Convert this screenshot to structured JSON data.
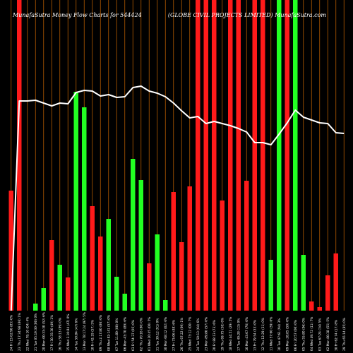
{
  "header": {
    "left_title": "MunafaSutra  Money Flow  Charts for 544424",
    "right_title": "(GLOBE CIVIL PROJECTS LIMITED) MunafaSutra.com"
  },
  "chart_data": {
    "type": "bar",
    "background": "#000000",
    "grid": "vertical orange lines per period",
    "colors": {
      "up": "#22ff22",
      "down": "#ff1a1a",
      "line": "#ffffff",
      "grid": "#b35a00"
    },
    "categories": [
      "24 Fri 15:02:96 (85) 0%",
      "23 Thu 17:34:98 (86) 1%",
      "22 Wed 78:10 (04) 4%",
      "21 Tue 05:19:30 (00) 0%",
      "20 Mon 00:33:30 (52) 6%",
      "17 Fri 30:35:30 (49) 1%",
      "16 Thu 58:13 (99) 0%",
      "15 Wed 2.10:84 (47) 0%",
      "14 Tue 59:84 (47) 6%",
      "13 Mon 78:17:24 (97) 5%",
      "10 Fri 42:19 (57) 5%",
      "09 Thu 2.17:80 (86) 0%",
      "08 Wed 82:141 (57) 0%",
      "07 Tue 11:80 (00) 0%",
      "06 Mon 43:70 (89) 6%",
      "03 Fri 54:37 (05) 0%",
      "02 Thu 70:16 (80) 0%",
      "01 Wed 20:45 (00) 5%",
      "31 Tue 39:12 (91) 0%",
      "30 Mon 68:12 (02) 6%",
      "27 Fri 73:06 (48) 6%",
      "26 Thu 67:22 (69) 1%",
      "25 Wed 73:12 (00) 7%",
      "24 Tue 50:13 (64) 6%",
      "23 Mon 89:80 (57) 0%",
      "20 Fri 88:13 (73) 6%",
      "19 Thu 69:75 (58) 6%",
      "18 Wed 44:51 (29) 5%",
      "17 Tue 49:28 (13) 0%",
      "16 Mon 43:67 (76) 0%",
      "13 Fri 79:54 (33) 0%",
      "12 Thu 12:29 (31) 0%",
      "11 Wed 57:60 (39) 0%",
      "10 Tue 47:61 (94) 3%",
      "09 Mon 28:85 (59) 0%",
      "06 Fri 20:57 (00) 0%",
      "05 Thu 55:80 (06) 0%",
      "04 Wed 49:72 (11) 7%",
      "03 Tue 67:24 (34) 5%",
      "02 Mon 80:38 (55) 5%",
      "30 Fri 62:74 (17) 8%",
      "29 Thu 65:14 (85) 0%"
    ],
    "series": [
      {
        "role": "money-flow-bars",
        "values": [
          170,
          440,
          0,
          10,
          32,
          100,
          65,
          47,
          310,
          288,
          148,
          105,
          130,
          48,
          24,
          215,
          185,
          67,
          108,
          15,
          168,
          97,
          176,
          440,
          440,
          440,
          156,
          440,
          440,
          184,
          440,
          440,
          72,
          440,
          440,
          440,
          79,
          13,
          5,
          50,
          81,
          0
        ],
        "directions": [
          "down",
          "down",
          "up",
          "up",
          "up",
          "down",
          "up",
          "down",
          "up",
          "up",
          "down",
          "down",
          "up",
          "up",
          "up",
          "up",
          "up",
          "down",
          "up",
          "up",
          "down",
          "down",
          "down",
          "down",
          "down",
          "down",
          "down",
          "down",
          "down",
          "down",
          "down",
          "down",
          "up",
          "up",
          "down",
          "up",
          "up",
          "down",
          "down",
          "down",
          "down",
          "up"
        ]
      },
      {
        "role": "price-line",
        "values": [
          0,
          297,
          297,
          298,
          294,
          290,
          294,
          293,
          309,
          312,
          311,
          304,
          306,
          302,
          303,
          316,
          318,
          311,
          308,
          303,
          294,
          283,
          273,
          275,
          265,
          268,
          265,
          262,
          258,
          253,
          238,
          238,
          235,
          250,
          266,
          284,
          274,
          270,
          266,
          265,
          252,
          251
        ]
      }
    ],
    "ylim": [
      0,
      440
    ]
  }
}
